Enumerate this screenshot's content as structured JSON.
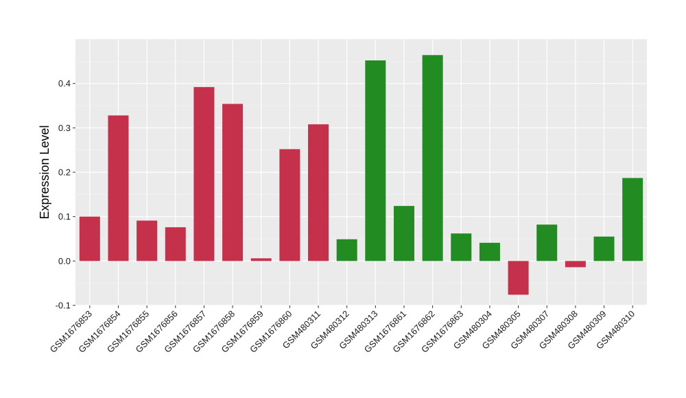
{
  "chart_data": {
    "type": "bar",
    "title": "",
    "xlabel": "",
    "ylabel": "Expression Level",
    "ylim": [
      -0.1,
      0.5
    ],
    "yticks": [
      -0.1,
      0.0,
      0.1,
      0.2,
      0.3,
      0.4
    ],
    "ytick_labels": [
      "-0.1",
      "0.0",
      "0.1",
      "0.2",
      "0.3",
      "0.4"
    ],
    "grid": true,
    "categories": [
      "GSM1676853",
      "GSM1676854",
      "GSM1676855",
      "GSM1676856",
      "GSM1676857",
      "GSM1676858",
      "GSM1676859",
      "GSM1676860",
      "GSM480311",
      "GSM480312",
      "GSM480313",
      "GSM1676861",
      "GSM1676862",
      "GSM1676863",
      "GSM480304",
      "GSM480305",
      "GSM480307",
      "GSM480308",
      "GSM480309",
      "GSM480310"
    ],
    "values": [
      0.1,
      0.328,
      0.091,
      0.076,
      0.392,
      0.354,
      0.006,
      0.252,
      0.308,
      0.049,
      0.452,
      0.124,
      0.464,
      0.062,
      0.041,
      -0.076,
      0.082,
      -0.014,
      0.055,
      0.187
    ],
    "bar_colors": [
      "#c5304a",
      "#c5304a",
      "#c5304a",
      "#c5304a",
      "#c5304a",
      "#c5304a",
      "#c5304a",
      "#c5304a",
      "#c5304a",
      "#228b22",
      "#228b22",
      "#228b22",
      "#228b22",
      "#228b22",
      "#228b22",
      "#c5304a",
      "#228b22",
      "#c5304a",
      "#228b22",
      "#228b22"
    ],
    "colors": {
      "panel_background": "#ebebeb",
      "grid_major": "#ffffff",
      "grid_minor": "#f5f5f5",
      "red": "#c5304a",
      "green": "#228b22"
    }
  }
}
